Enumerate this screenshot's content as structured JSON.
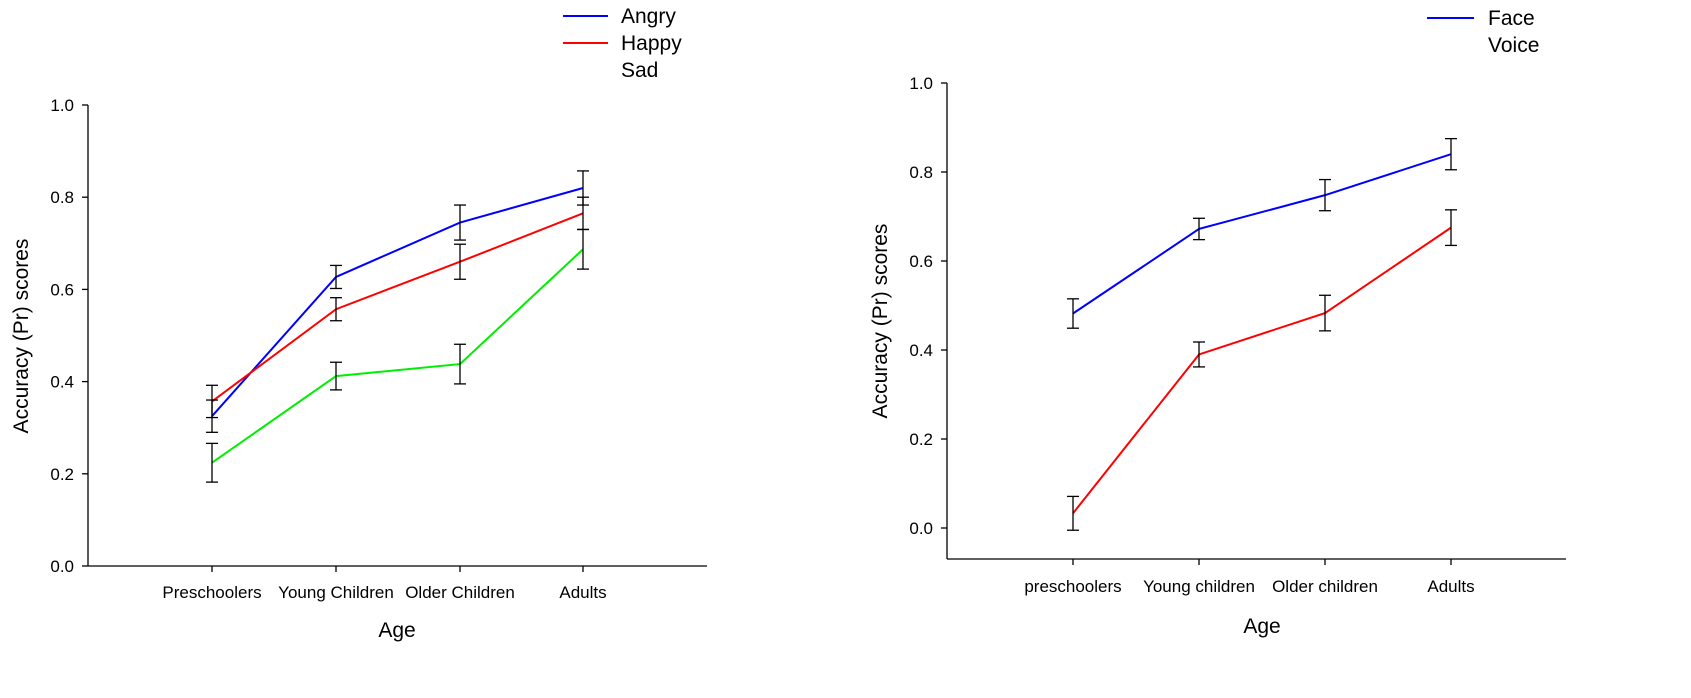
{
  "chart_data": [
    {
      "type": "line",
      "xlabel": "Age",
      "ylabel": "Accuracy (Pr) scores",
      "ylim": [
        0,
        1
      ],
      "yticks": [
        "0.0",
        "0.2",
        "0.4",
        "0.6",
        "0.8",
        "1.0"
      ],
      "categories": [
        "Preschoolers",
        "Young Children",
        "Older Children",
        "Adults"
      ],
      "legend_position": "top-right",
      "series": [
        {
          "name": "Angry",
          "color": "#0000ff",
          "values": [
            0.325,
            0.627,
            0.745,
            0.82
          ],
          "errors": [
            0.035,
            0.025,
            0.038,
            0.037
          ]
        },
        {
          "name": "Happy",
          "color": "#ff0000",
          "values": [
            0.357,
            0.557,
            0.66,
            0.765
          ],
          "errors": [
            0.035,
            0.025,
            0.038,
            0.035
          ]
        },
        {
          "name": "Sad",
          "color": "#00ee00",
          "values": [
            0.224,
            0.412,
            0.438,
            0.687
          ],
          "errors": [
            0.042,
            0.03,
            0.043,
            0.043
          ]
        }
      ]
    },
    {
      "type": "line",
      "xlabel": "Age",
      "ylabel": "Accuracy (Pr) scores",
      "ylim": [
        -0.07,
        1.0
      ],
      "yticks": [
        "0.0",
        "0.2",
        "0.4",
        "0.6",
        "0.8",
        "1.0"
      ],
      "categories": [
        "preschoolers",
        "Young children",
        "Older children",
        "Adults"
      ],
      "legend_position": "top-right",
      "series": [
        {
          "name": "Face",
          "color": "#0000ff",
          "values": [
            0.482,
            0.672,
            0.748,
            0.84
          ],
          "errors": [
            0.033,
            0.024,
            0.035,
            0.035
          ]
        },
        {
          "name": "Voice",
          "color": "#ff0000",
          "values": [
            0.033,
            0.39,
            0.483,
            0.675
          ],
          "errors": [
            0.038,
            0.028,
            0.04,
            0.04
          ]
        }
      ]
    }
  ]
}
